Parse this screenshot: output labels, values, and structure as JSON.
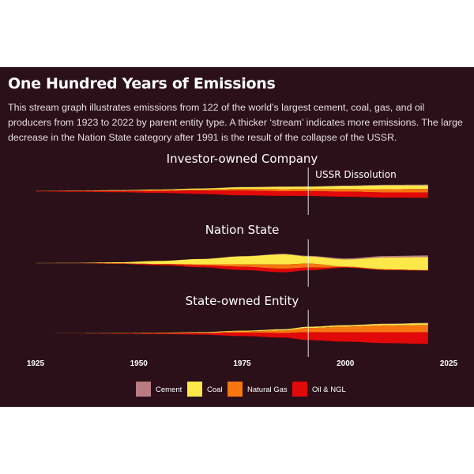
{
  "title": "One Hundred Years of Emissions",
  "subtitle": "This stream graph illustrates emissions from 122 of the world’s largest cement, coal, gas, and oil producers from 1923 to 2022 by parent entity type. A thicker ‘stream’ indicates more emissions. The large decrease in the Nation State category after 1991 is the result of the collapse of the USSR.",
  "chart_data": {
    "type": "area",
    "layout": "stream",
    "xlim": [
      1925,
      2025
    ],
    "x_ticks": [
      1925,
      1950,
      1975,
      2000,
      2025
    ],
    "grid": false,
    "legend_position": "bottom",
    "annotation": {
      "label": "USSR Dissolution",
      "x": 1991
    },
    "legend": [
      {
        "name": "Cement",
        "color": "#b97c82"
      },
      {
        "name": "Coal",
        "color": "#fde84a"
      },
      {
        "name": "Natural Gas",
        "color": "#f7760f"
      },
      {
        "name": "Oil & NGL",
        "color": "#e10909"
      }
    ],
    "facets": [
      {
        "title": "Investor-owned Company",
        "x": [
          1925,
          1935,
          1945,
          1955,
          1965,
          1975,
          1985,
          1991,
          2000,
          2010,
          2020
        ],
        "series": [
          {
            "name": "Cement",
            "values": [
              0,
              0,
              0,
              0,
              0.1,
              0.2,
              0.2,
              0.3,
              0.3,
              0.5,
              0.6
            ]
          },
          {
            "name": "Coal",
            "values": [
              0.2,
              0.3,
              0.5,
              0.7,
              0.9,
              1.4,
              2.0,
              2.0,
              2.6,
              3.3,
              3.0
            ]
          },
          {
            "name": "Natural Gas",
            "values": [
              0,
              0.1,
              0.2,
              0.4,
              0.8,
              1.4,
              1.7,
              1.8,
              2.1,
              2.6,
              3.0
            ]
          },
          {
            "name": "Oil & NGL",
            "values": [
              0.3,
              0.6,
              1.0,
              1.8,
              2.9,
              4.0,
              3.9,
              4.0,
              4.3,
              4.4,
              4.5
            ]
          }
        ]
      },
      {
        "title": "Nation State",
        "x": [
          1925,
          1935,
          1945,
          1955,
          1965,
          1975,
          1985,
          1991,
          2000,
          2010,
          2020
        ],
        "series": [
          {
            "name": "Cement",
            "values": [
              0,
              0,
              0,
              0,
              0.1,
              0.2,
              0.4,
              0.5,
              0.8,
              1.2,
              1.4
            ]
          },
          {
            "name": "Coal",
            "values": [
              0.1,
              0.3,
              0.9,
              2.5,
              4.4,
              6.7,
              8.5,
              6.0,
              6.0,
              10.0,
              11.0
            ]
          },
          {
            "name": "Natural Gas",
            "values": [
              0,
              0,
              0.1,
              0.3,
              0.9,
              2.0,
              3.6,
              3.4,
              0.6,
              0.4,
              0.3
            ]
          },
          {
            "name": "Oil & NGL",
            "values": [
              0,
              0.1,
              0.3,
              0.8,
              1.6,
              2.8,
              3.0,
              2.3,
              0.4,
              0.3,
              0.2
            ]
          }
        ]
      },
      {
        "title": "State-owned Entity",
        "x": [
          1925,
          1935,
          1945,
          1955,
          1965,
          1975,
          1985,
          1991,
          2000,
          2010,
          2020
        ],
        "series": [
          {
            "name": "Cement",
            "values": [
              0,
              0,
              0,
              0,
              0,
              0,
              0.1,
              0.1,
              0.2,
              0.3,
              0.4
            ]
          },
          {
            "name": "Coal",
            "values": [
              0,
              0.1,
              0.2,
              0.3,
              0.5,
              0.6,
              1.0,
              1.0,
              1.1,
              1.2,
              1.4
            ]
          },
          {
            "name": "Natural Gas",
            "values": [
              0,
              0,
              0.1,
              0.2,
              0.4,
              1.0,
              2.1,
              3.6,
              4.9,
              5.8,
              6.2
            ]
          },
          {
            "name": "Oil & NGL",
            "values": [
              0,
              0.1,
              0.3,
              0.6,
              1.2,
              2.9,
              3.9,
              6.6,
              7.8,
              9.2,
              9.8
            ]
          }
        ]
      }
    ]
  }
}
